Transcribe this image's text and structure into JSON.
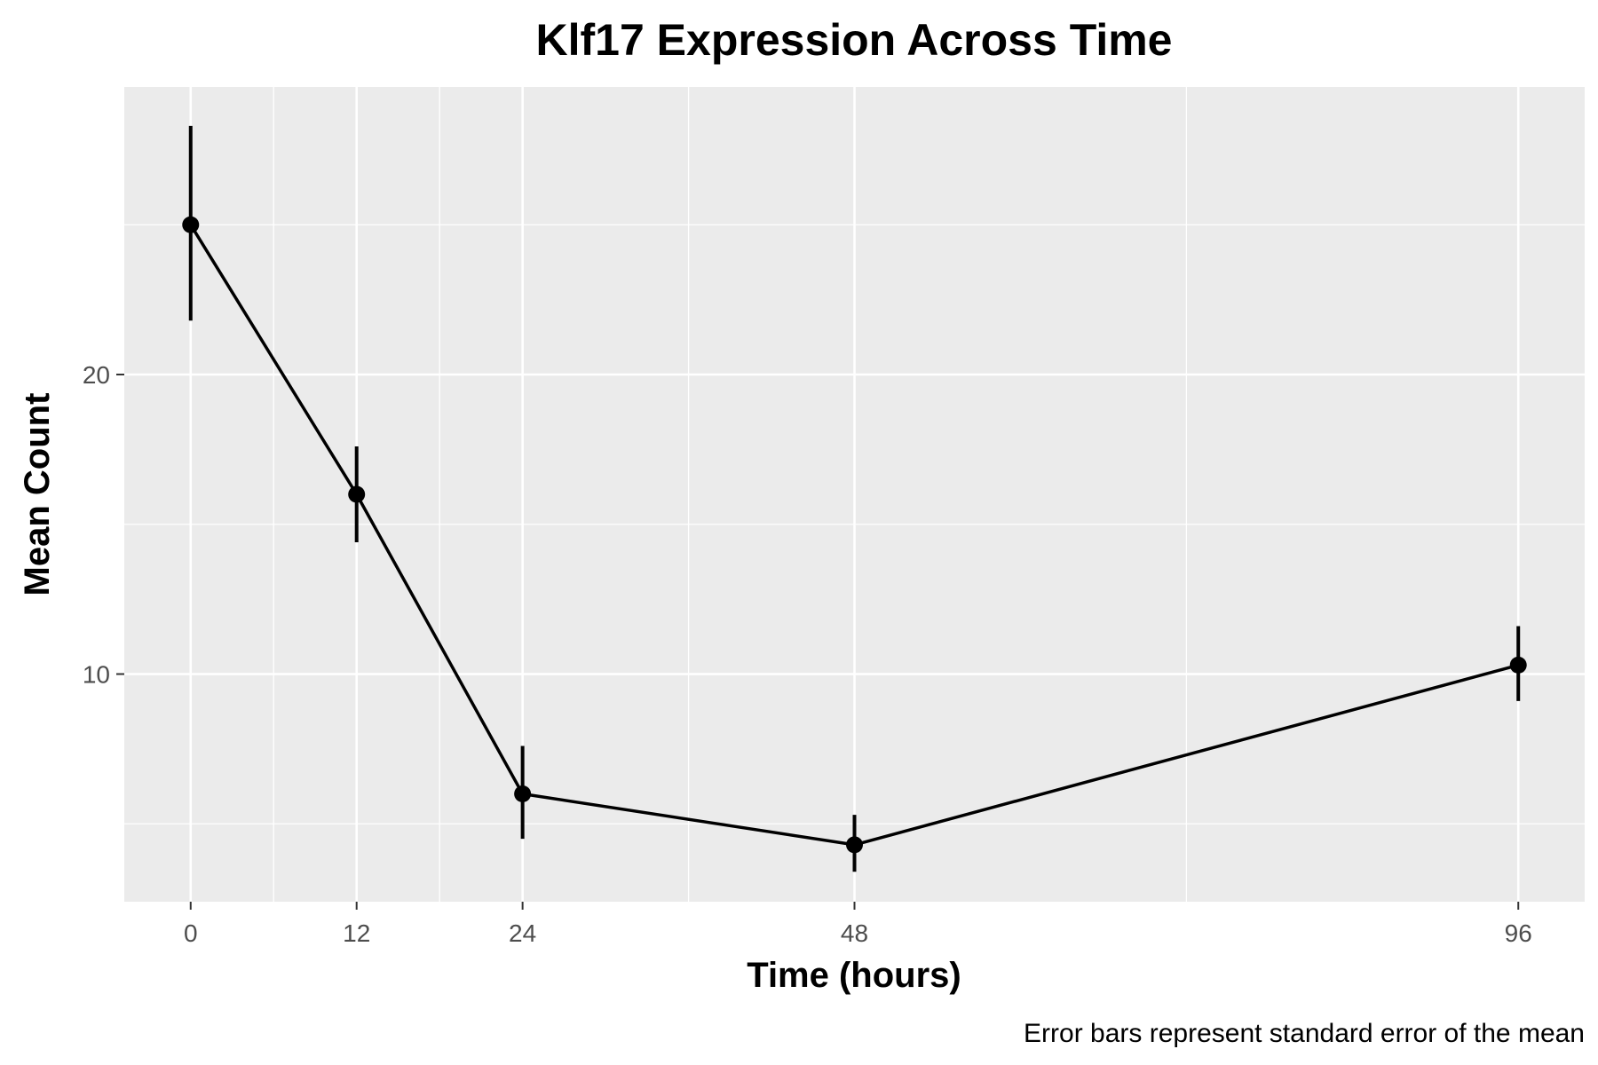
{
  "chart_data": {
    "type": "line",
    "title": "Klf17 Expression Across Time",
    "xlabel": "Time (hours)",
    "ylabel": "Mean Count",
    "caption": "Error bars represent standard error of the mean",
    "x": [
      0,
      12,
      24,
      48,
      96
    ],
    "x_ticks": [
      "0",
      "12",
      "24",
      "48",
      "96"
    ],
    "y_ticks": [
      "10",
      "20"
    ],
    "y_tick_values": [
      10,
      20
    ],
    "xlim": [
      -4.8,
      100.8
    ],
    "ylim": [
      2.4,
      29.6
    ],
    "series": [
      {
        "values": [
          25.0,
          16.0,
          6.0,
          4.3,
          10.3
        ],
        "error_low": [
          21.8,
          14.4,
          4.5,
          3.4,
          9.1
        ],
        "error_high": [
          28.3,
          17.6,
          7.6,
          5.3,
          11.6
        ]
      }
    ],
    "grid": true,
    "legend": "none",
    "colors": {
      "panel": "#ebebeb",
      "grid": "#ffffff",
      "line": "#000000"
    }
  }
}
